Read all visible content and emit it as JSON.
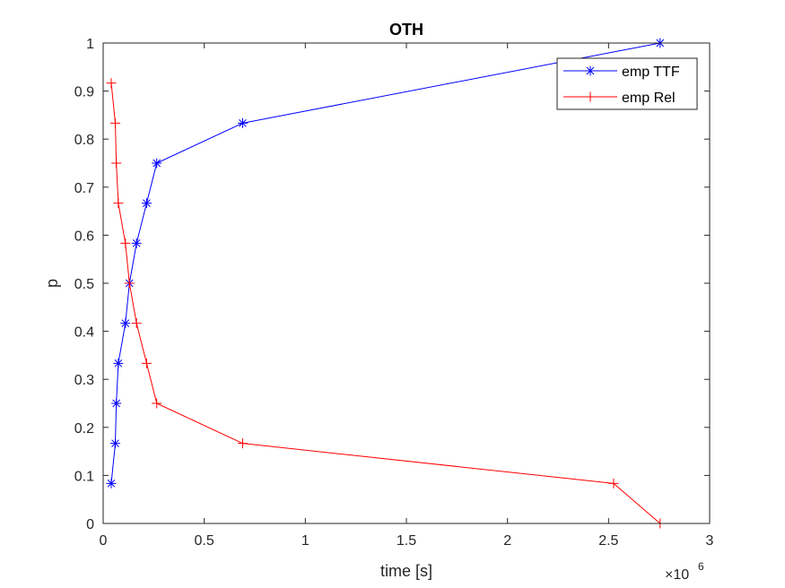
{
  "chart_data": {
    "type": "line",
    "title": "OTH",
    "xlabel": "time [s]",
    "ylabel": "p",
    "x_exponent_base": "×10",
    "x_exponent_power": "6",
    "xlim": [
      0,
      3
    ],
    "ylim": [
      0,
      1
    ],
    "xticks": [
      0,
      0.5,
      1,
      1.5,
      2,
      2.5,
      3
    ],
    "xtick_labels": [
      "0",
      "0.5",
      "1",
      "1.5",
      "2",
      "2.5",
      "3"
    ],
    "yticks": [
      0,
      0.1,
      0.2,
      0.3,
      0.4,
      0.5,
      0.6,
      0.7,
      0.8,
      0.9,
      1
    ],
    "ytick_labels": [
      "0",
      "0.1",
      "0.2",
      "0.3",
      "0.4",
      "0.5",
      "0.6",
      "0.7",
      "0.8",
      "0.9",
      "1"
    ],
    "grid": false,
    "legend_position": "top-right",
    "series": [
      {
        "name": "emp TTF",
        "color": "#0000ff",
        "marker": "asterisk",
        "x": [
          0.04,
          0.06,
          0.065,
          0.075,
          0.11,
          0.13,
          0.165,
          0.215,
          0.265,
          0.69,
          2.755
        ],
        "y": [
          0.0833,
          0.1667,
          0.25,
          0.3333,
          0.4167,
          0.5,
          0.5833,
          0.6667,
          0.75,
          0.8333,
          1.0
        ]
      },
      {
        "name": "emp Rel",
        "color": "#ff0000",
        "marker": "plus",
        "x": [
          0.04,
          0.06,
          0.065,
          0.075,
          0.11,
          0.13,
          0.165,
          0.215,
          0.265,
          0.69,
          2.525,
          2.755
        ],
        "y": [
          0.9167,
          0.8333,
          0.75,
          0.6667,
          0.5833,
          0.5,
          0.4167,
          0.3333,
          0.25,
          0.1667,
          0.0833,
          0.0
        ]
      }
    ]
  }
}
